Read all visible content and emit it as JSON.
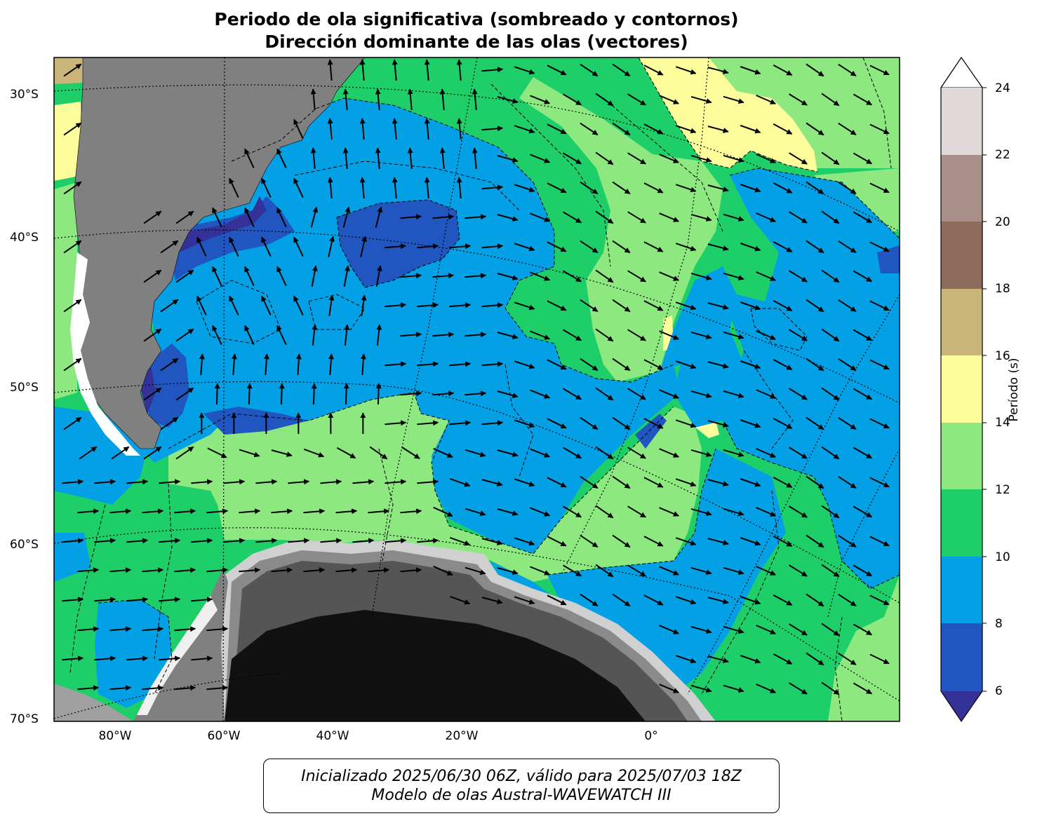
{
  "title": {
    "line1": "Periodo de ola significativa (sombreado y contornos)",
    "line2": "Dirección dominante de las olas (vectores)"
  },
  "map": {
    "lat_labels": [
      "30°S",
      "40°S",
      "50°S",
      "60°S",
      "70°S"
    ],
    "lon_labels": [
      "80°W",
      "60°W",
      "40°W",
      "20°W",
      "0°"
    ]
  },
  "colorbar": {
    "label": "Período (s)",
    "ticks": [
      "6",
      "8",
      "10",
      "12",
      "14",
      "16",
      "18",
      "20",
      "22",
      "24"
    ],
    "colors": {
      "under_6": "#343299",
      "6_8": "#2156c0",
      "8_10": "#04a0e6",
      "10_12": "#1ecf69",
      "12_14": "#8ce87f",
      "14_16": "#fefd9b",
      "16_18": "#c9b47a",
      "18_20": "#8d6c5c",
      "20_22": "#a89089",
      "22_24": "#e0d9d8",
      "over_24": "#ffffff"
    },
    "extend": "both"
  },
  "land_colors": {
    "continent": "#808080",
    "antarctic_ice_dark": "#111111"
  },
  "footer": {
    "line1": "Inicializado 2025/06/30 06Z, válido para 2025/07/03 18Z",
    "line2": "Modelo de olas Austral-WAVEWATCH III"
  }
}
